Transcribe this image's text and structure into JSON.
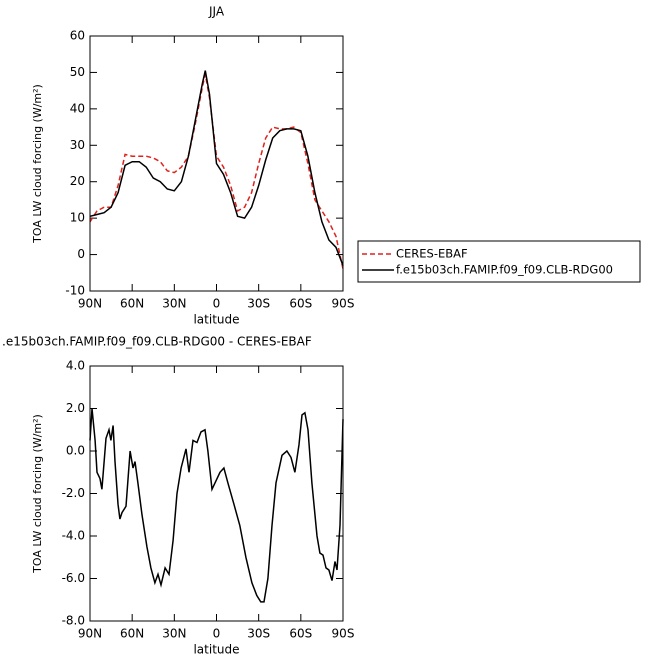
{
  "chart_data": [
    {
      "type": "line",
      "title": "JJA",
      "xlabel": "latitude",
      "ylabel": "TOA LW cloud forcing (W/m²)",
      "x": [
        90,
        85,
        80,
        75,
        70,
        65,
        60,
        55,
        50,
        45,
        40,
        35,
        30,
        25,
        20,
        15,
        10,
        8,
        5,
        0,
        -5,
        -10,
        -15,
        -20,
        -25,
        -30,
        -35,
        -40,
        -45,
        -50,
        -55,
        -60,
        -65,
        -70,
        -75,
        -80,
        -85,
        -90
      ],
      "series": [
        {
          "name": "CERES-EBAF",
          "color": "#e0211c",
          "dash": true,
          "values": [
            9,
            12,
            13,
            13,
            19,
            27.5,
            27,
            27,
            27,
            26.5,
            25.5,
            23,
            22.5,
            24,
            27,
            36,
            46,
            49.5,
            43,
            27,
            24,
            19,
            12,
            13,
            17,
            25,
            32,
            35,
            34.5,
            34.5,
            35,
            33.5,
            25,
            15,
            12,
            9,
            5,
            -4
          ]
        },
        {
          "name": "f.e15b03ch.FAMIP.f09_f09.CLB-RDG00",
          "color": "#000000",
          "dash": false,
          "values": [
            10.5,
            11,
            11.5,
            13,
            17,
            24.5,
            25.5,
            25.5,
            24,
            21,
            20,
            18,
            17.5,
            20,
            27,
            37,
            47,
            50.5,
            44,
            25,
            22,
            17,
            10.5,
            10,
            13,
            19,
            26,
            32,
            34,
            34.5,
            34.5,
            34,
            27,
            17,
            9,
            4,
            2,
            -3
          ]
        }
      ],
      "xlim": [
        90,
        -90
      ],
      "xticks": [
        {
          "value": 90,
          "label": "90N"
        },
        {
          "value": 60,
          "label": "60N"
        },
        {
          "value": 30,
          "label": "30N"
        },
        0,
        {
          "value": -30,
          "label": "30S"
        },
        {
          "value": -60,
          "label": "60S"
        },
        {
          "value": -90,
          "label": "90S"
        }
      ],
      "ylim": [
        -10,
        60
      ],
      "yticks": [
        -10,
        0,
        10,
        20,
        30,
        40,
        50,
        60
      ],
      "legend": "outside-right"
    },
    {
      "type": "line",
      "title": ".e15b03ch.FAMIP.f09_f09.CLB-RDG00 - CERES-EBAF",
      "xlabel": "latitude",
      "ylabel": "TOA LW cloud forcing (W/m²)",
      "x": [
        90,
        88.6,
        86.4,
        85,
        82.9,
        81.5,
        78.6,
        76.5,
        75.1,
        73.6,
        72.2,
        70.1,
        68.7,
        67.2,
        64.4,
        61.5,
        59.4,
        58,
        55.9,
        53,
        49.5,
        46.7,
        43.8,
        41.6,
        39.5,
        36.6,
        33.8,
        30.9,
        28.1,
        25.2,
        21.7,
        19.6,
        16.7,
        13.9,
        11,
        8.2,
        6.1,
        3.2,
        1.1,
        -2.5,
        -5.3,
        -8.1,
        -12.4,
        -16.6,
        -20.9,
        -25.2,
        -28.7,
        -31.5,
        -33.8,
        -36.6,
        -39.5,
        -42.3,
        -46.6,
        -50.1,
        -53,
        -55.8,
        -58.7,
        -60.8,
        -62.9,
        -65.1,
        -67.9,
        -71.5,
        -73.6,
        -75.8,
        -77.9,
        -80,
        -82.2,
        -84.3,
        -85.7,
        -87.9,
        -90
      ],
      "color": "#000000",
      "values": [
        0.5,
        2.0,
        0.5,
        -1.0,
        -1.3,
        -1.8,
        0.6,
        1.0,
        0.5,
        1.2,
        -0.5,
        -2.5,
        -3.2,
        -2.9,
        -2.6,
        0.0,
        -0.8,
        -0.5,
        -1.5,
        -3.0,
        -4.5,
        -5.5,
        -6.2,
        -5.8,
        -6.3,
        -5.5,
        -5.8,
        -4.2,
        -2.0,
        -0.8,
        0.1,
        -1.0,
        0.5,
        0.4,
        0.9,
        1.0,
        0.0,
        -1.8,
        -1.5,
        -1.0,
        -0.8,
        -1.5,
        -2.5,
        -3.5,
        -5.0,
        -6.2,
        -6.8,
        -7.1,
        -7.1,
        -6.0,
        -3.5,
        -1.5,
        -0.2,
        0.0,
        -0.3,
        -1.0,
        0.3,
        1.7,
        1.8,
        1.0,
        -1.5,
        -4.0,
        -4.8,
        -4.9,
        -5.5,
        -5.6,
        -6.1,
        -5.2,
        -5.6,
        -3.5,
        1.5
      ],
      "xlim": [
        90,
        -90
      ],
      "xticks": [
        {
          "value": 90,
          "label": "90N"
        },
        {
          "value": 60,
          "label": "60N"
        },
        {
          "value": 30,
          "label": "30N"
        },
        0,
        {
          "value": -30,
          "label": "30S"
        },
        {
          "value": -60,
          "label": "60S"
        },
        {
          "value": -90,
          "label": "90S"
        }
      ],
      "ylim": [
        -8,
        4
      ],
      "yticks": [
        {
          "value": -8,
          "label": "-8.0"
        },
        {
          "value": -6,
          "label": "-6.0"
        },
        {
          "value": -4,
          "label": "-4.0"
        },
        {
          "value": -2,
          "label": "-2.0"
        },
        {
          "value": 0,
          "label": "0.0"
        },
        {
          "value": 2,
          "label": "2.0"
        },
        {
          "value": 4,
          "label": "4.0"
        }
      ]
    }
  ]
}
